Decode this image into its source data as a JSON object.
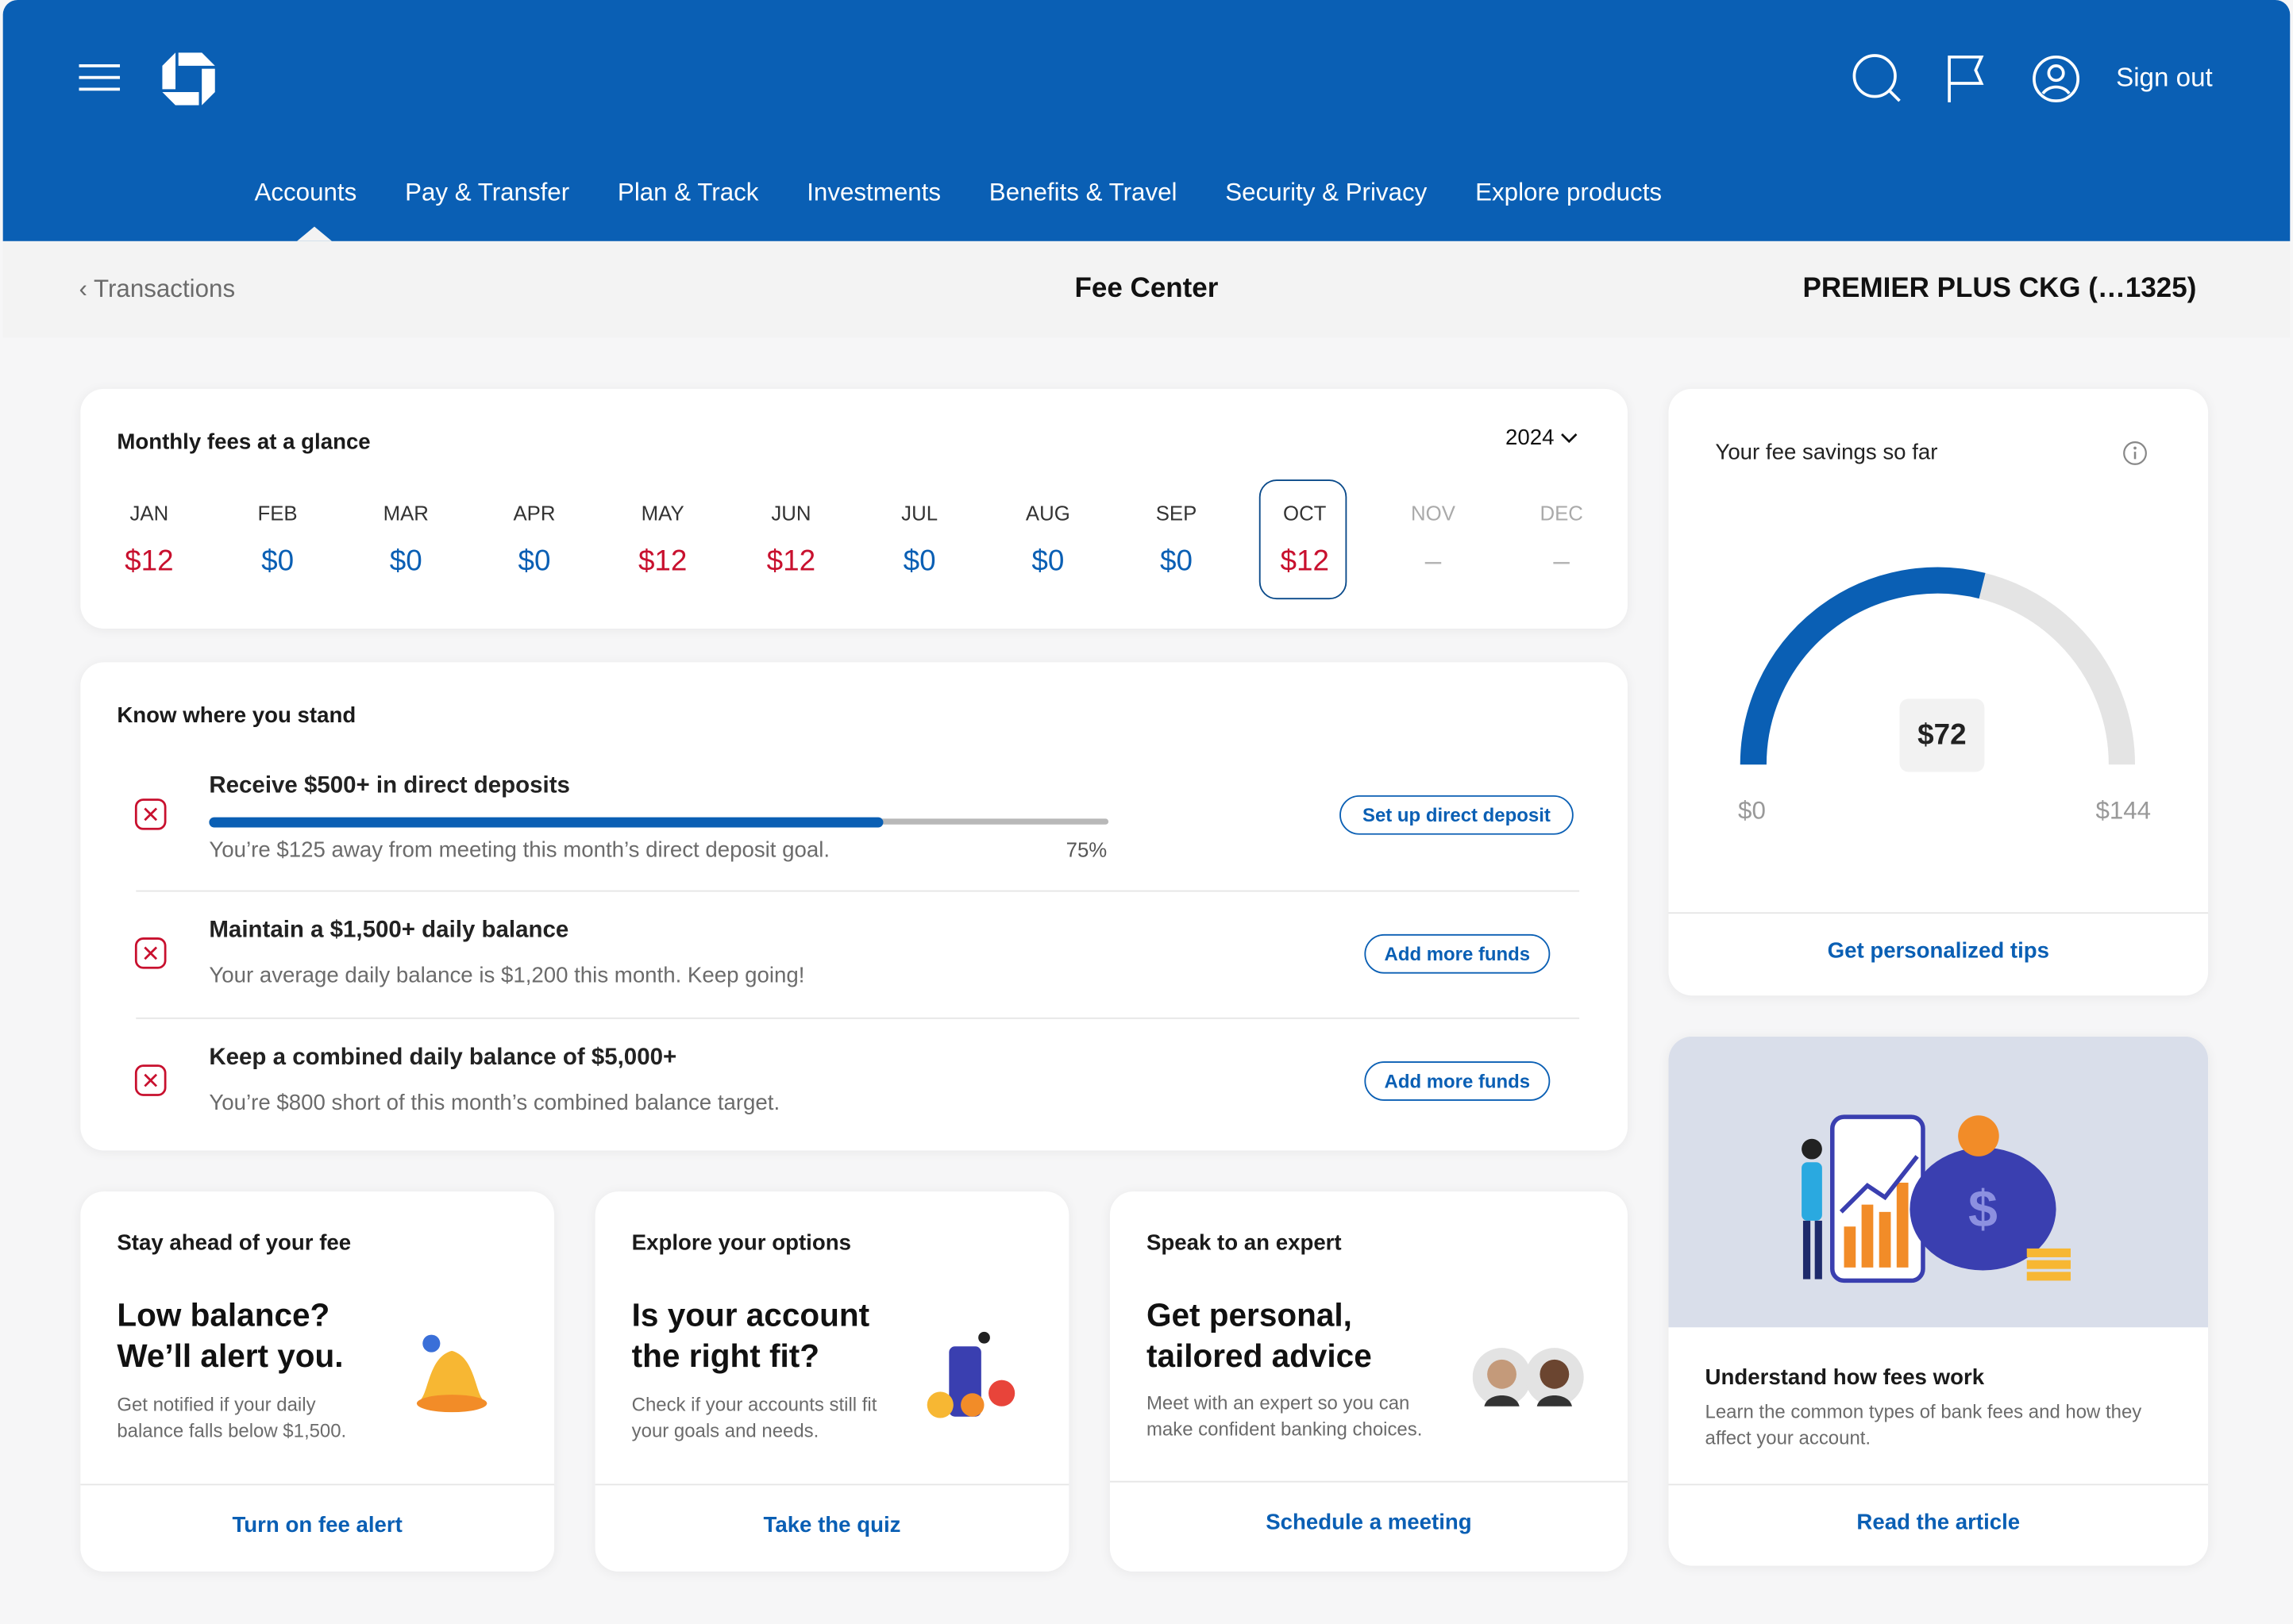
{
  "header": {
    "sign_out": "Sign out",
    "nav": [
      "Accounts",
      "Pay & Transfer",
      "Plan & Track",
      "Investments",
      "Benefits & Travel",
      "Security & Privacy",
      "Explore products"
    ]
  },
  "subheader": {
    "back": "Transactions",
    "title": "Fee Center",
    "account": "PREMIER PLUS CKG (…1325)"
  },
  "monthly_fees": {
    "title": "Monthly fees at a glance",
    "year": "2024",
    "months": [
      {
        "month": "JAN",
        "fee": "$12",
        "color": "#c8102e"
      },
      {
        "month": "FEB",
        "fee": "$0",
        "color": "#0a5fb4"
      },
      {
        "month": "MAR",
        "fee": "$0",
        "color": "#0a5fb4"
      },
      {
        "month": "APR",
        "fee": "$0",
        "color": "#0a5fb4"
      },
      {
        "month": "MAY",
        "fee": "$12",
        "color": "#c8102e"
      },
      {
        "month": "JUN",
        "fee": "$12",
        "color": "#c8102e"
      },
      {
        "month": "JUL",
        "fee": "$0",
        "color": "#0a5fb4"
      },
      {
        "month": "AUG",
        "fee": "$0",
        "color": "#0a5fb4"
      },
      {
        "month": "SEP",
        "fee": "$0",
        "color": "#0a5fb4"
      },
      {
        "month": "OCT",
        "fee": "$12",
        "color": "#c8102e",
        "selected": true
      },
      {
        "month": "NOV",
        "fee": "–",
        "color": "#b5b5b5"
      },
      {
        "month": "DEC",
        "fee": "–",
        "color": "#b5b5b5"
      }
    ]
  },
  "standing": {
    "title": "Know where you stand",
    "items": [
      {
        "title": "Receive $500+ in direct deposits",
        "text": "You’re $125 away from meeting this month’s direct deposit goal.",
        "progress": "75%",
        "action": "Set up direct deposit"
      },
      {
        "title": "Maintain a $1,500+ daily balance",
        "text": "Your average daily balance is $1,200 this month. Keep going!",
        "action": "Add more funds"
      },
      {
        "title": "Keep a combined daily balance of $5,000+",
        "text": "You’re $800 short of this month’s combined balance target.",
        "action": "Add more funds"
      }
    ]
  },
  "savings": {
    "title": "Your fee savings so far",
    "value": "$72",
    "min": "$0",
    "max": "$144",
    "link": "Get personalized tips"
  },
  "cards": [
    {
      "section": "Stay ahead of your fee",
      "heading": "Low balance? We’ll alert you.",
      "text": "Get notified if your daily balance falls below $1,500.",
      "link": "Turn on fee alert"
    },
    {
      "section": "Explore your options",
      "heading": "Is your account the right fit?",
      "text": "Check if your accounts still fit your goals and needs.",
      "link": "Take the quiz"
    },
    {
      "section": "Speak to an expert",
      "heading": "Get personal, tailored advice",
      "text": "Meet with an expert so you can make confident banking choices.",
      "link": "Schedule a meeting"
    }
  ],
  "article": {
    "title": "Understand how fees work",
    "text": "Learn the common types of bank fees and how they affect your account.",
    "link": "Read the article"
  }
}
